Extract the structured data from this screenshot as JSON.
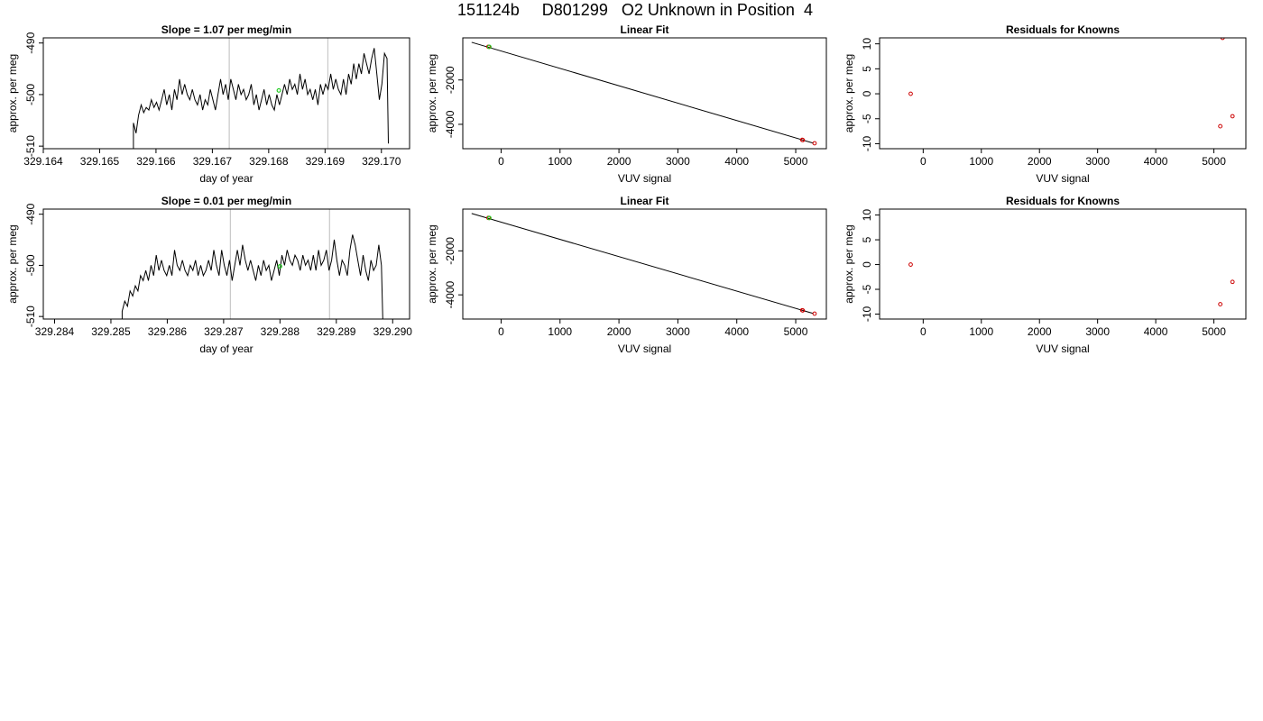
{
  "figure": {
    "title": "151124b     D801299   O2 Unknown in Position  4"
  },
  "colors": {
    "line": "#000000",
    "fit_line": "#000000",
    "known_points": "#cc0000",
    "unknown_point": "#22cc22",
    "marker_lines": "#c8c8c8"
  },
  "chart_data": [
    {
      "type": "line",
      "title": "Slope =  1.07  per meg/min",
      "xlabel": "day of year",
      "ylabel": "approx. per meg",
      "xlim": [
        329.164,
        329.1705
      ],
      "ylim": [
        -510.5,
        -489.0
      ],
      "xticks": [
        "329.164",
        "329.165",
        "329.166",
        "329.167",
        "329.168",
        "329.169",
        "329.170"
      ],
      "xtick_values": [
        329.164,
        329.165,
        329.166,
        329.167,
        329.168,
        329.169,
        329.17
      ],
      "yticks": [
        "-510",
        "-500",
        "-490"
      ],
      "ytick_values": [
        -510,
        -500,
        -490
      ],
      "vlines": [
        329.1673,
        329.16905
      ],
      "trace": {
        "x_start": 329.1656,
        "x_end": 329.1701,
        "start_value": -510.5,
        "values": [
          -505.5,
          -507.5,
          -504,
          -502,
          -503.5,
          -502.5,
          -503,
          -501,
          -502.5,
          -501.5,
          -503,
          -501,
          -499,
          -502,
          -500,
          -503,
          -499,
          -501,
          -497,
          -500,
          -498,
          -500,
          -501,
          -499,
          -501,
          -502,
          -500,
          -503,
          -501,
          -502,
          -499,
          -501,
          -503,
          -500,
          -497,
          -500,
          -498,
          -501,
          -497,
          -499,
          -501,
          -498,
          -500,
          -499,
          -501,
          -500,
          -498,
          -502,
          -500,
          -503,
          -501,
          -499,
          -502,
          -500,
          -502,
          -503,
          -500,
          -502,
          -500,
          -498,
          -500,
          -497,
          -499,
          -498,
          -500,
          -496,
          -499,
          -497,
          -500,
          -499,
          -501,
          -499,
          -502,
          -498,
          -500,
          -498,
          -499,
          -496,
          -499,
          -497,
          -499,
          -500,
          -497,
          -500,
          -496,
          -498,
          -494,
          -497,
          -494,
          -496,
          -492,
          -494,
          -496,
          -493,
          -491,
          -496,
          -501,
          -498,
          -492,
          -493
        ],
        "end_value": -509.5
      },
      "marker": {
        "x": 329.16818,
        "y": -499.2
      }
    },
    {
      "type": "scatter",
      "title": "Linear Fit",
      "xlabel": "VUV signal",
      "ylabel": "approx. per meg",
      "xlim": [
        -650,
        5520
      ],
      "ylim": [
        -5100,
        -100
      ],
      "xticks": [
        "0",
        "1000",
        "2000",
        "3000",
        "4000",
        "5000"
      ],
      "xtick_values": [
        0,
        1000,
        2000,
        3000,
        4000,
        5000
      ],
      "yticks": [
        "-4000",
        "-2000"
      ],
      "ytick_values": [
        -4000,
        -2000
      ],
      "fit_line": {
        "x": [
          -500,
          5300
        ],
        "y": [
          -300,
          -4850
        ]
      },
      "knowns": {
        "x": [
          -215,
          5110,
          5120,
          5320
        ],
        "y": [
          -500,
          -4700,
          -4710,
          -4855
        ]
      },
      "unknown": {
        "x": -200,
        "y": -505
      }
    },
    {
      "type": "scatter",
      "title": "Residuals for Knowns",
      "xlabel": "VUV signal",
      "ylabel": "approx. per meg",
      "xlim": [
        -750,
        5550
      ],
      "ylim": [
        -11,
        11.2
      ],
      "xticks": [
        "0",
        "1000",
        "2000",
        "3000",
        "4000",
        "5000"
      ],
      "xtick_values": [
        0,
        1000,
        2000,
        3000,
        4000,
        5000
      ],
      "yticks": [
        "-10",
        "-5",
        "0",
        "5",
        "10"
      ],
      "ytick_values": [
        -10,
        -5,
        0,
        5,
        10
      ],
      "knowns": {
        "x": [
          -215,
          5110,
          5150,
          5320
        ],
        "y": [
          0,
          -6.5,
          11.2,
          -4.5
        ]
      }
    },
    {
      "type": "line",
      "title": "Slope =  0.01  per meg/min",
      "xlabel": "day of year",
      "ylabel": "approx. per meg",
      "xlim": [
        329.2838,
        329.2903
      ],
      "ylim": [
        -510.5,
        -489.0
      ],
      "xticks": [
        "329.284",
        "329.285",
        "329.286",
        "329.287",
        "329.288",
        "329.289",
        "329.290"
      ],
      "xtick_values": [
        329.284,
        329.285,
        329.286,
        329.287,
        329.288,
        329.289,
        329.29
      ],
      "yticks": [
        "-510",
        "-500",
        "-490"
      ],
      "ytick_values": [
        -510,
        -500,
        -490
      ],
      "vlines": [
        329.28712,
        329.28888
      ],
      "trace": {
        "x_start": 329.2852,
        "x_end": 329.2898,
        "start_value": -510.5,
        "values": [
          -509,
          -507,
          -508,
          -505,
          -506,
          -504,
          -505,
          -502,
          -503,
          -501,
          -503,
          -500,
          -502,
          -498,
          -501,
          -499,
          -501,
          -502,
          -500,
          -502,
          -497,
          -500,
          -501,
          -499,
          -501,
          -502,
          -500,
          -501,
          -499,
          -502,
          -500,
          -502,
          -501,
          -499,
          -501,
          -497,
          -500,
          -502,
          -497,
          -500,
          -502,
          -499,
          -503,
          -500,
          -497,
          -500,
          -496,
          -499,
          -501,
          -499,
          -501,
          -503,
          -500,
          -502,
          -499,
          -501,
          -500,
          -503,
          -501,
          -499,
          -502,
          -498,
          -500,
          -497,
          -499,
          -500,
          -498,
          -499,
          -501,
          -498,
          -500,
          -499,
          -501,
          -498,
          -501,
          -497,
          -500,
          -499,
          -497,
          -501,
          -499,
          -495,
          -499,
          -502,
          -499,
          -500,
          -502,
          -497,
          -494,
          -496,
          -499,
          -502,
          -498,
          -501,
          -503,
          -499,
          -501,
          -500,
          -496,
          -500
        ],
        "end_value": -510.5
      },
      "marker": {
        "x": 329.288,
        "y": -500.2
      }
    },
    {
      "type": "scatter",
      "title": "Linear Fit",
      "xlabel": "VUV signal",
      "ylabel": "approx. per meg",
      "xlim": [
        -650,
        5520
      ],
      "ylim": [
        -5100,
        -100
      ],
      "xticks": [
        "0",
        "1000",
        "2000",
        "3000",
        "4000",
        "5000"
      ],
      "xtick_values": [
        0,
        1000,
        2000,
        3000,
        4000,
        5000
      ],
      "yticks": [
        "-4000",
        "-2000"
      ],
      "ytick_values": [
        -4000,
        -2000
      ],
      "fit_line": {
        "x": [
          -500,
          5300
        ],
        "y": [
          -300,
          -4850
        ]
      },
      "knowns": {
        "x": [
          -215,
          5110,
          5120,
          5320
        ],
        "y": [
          -500,
          -4700,
          -4710,
          -4855
        ]
      },
      "unknown": {
        "x": -200,
        "y": -505
      }
    },
    {
      "type": "scatter",
      "title": "Residuals for Knowns",
      "xlabel": "VUV signal",
      "ylabel": "approx. per meg",
      "xlim": [
        -750,
        5550
      ],
      "ylim": [
        -11,
        11.2
      ],
      "xticks": [
        "0",
        "1000",
        "2000",
        "3000",
        "4000",
        "5000"
      ],
      "xtick_values": [
        0,
        1000,
        2000,
        3000,
        4000,
        5000
      ],
      "yticks": [
        "-10",
        "-5",
        "0",
        "5",
        "10"
      ],
      "ytick_values": [
        -10,
        -5,
        0,
        5,
        10
      ],
      "knowns": {
        "x": [
          -215,
          5110,
          5320
        ],
        "y": [
          0,
          -8,
          -3.5
        ]
      }
    }
  ]
}
